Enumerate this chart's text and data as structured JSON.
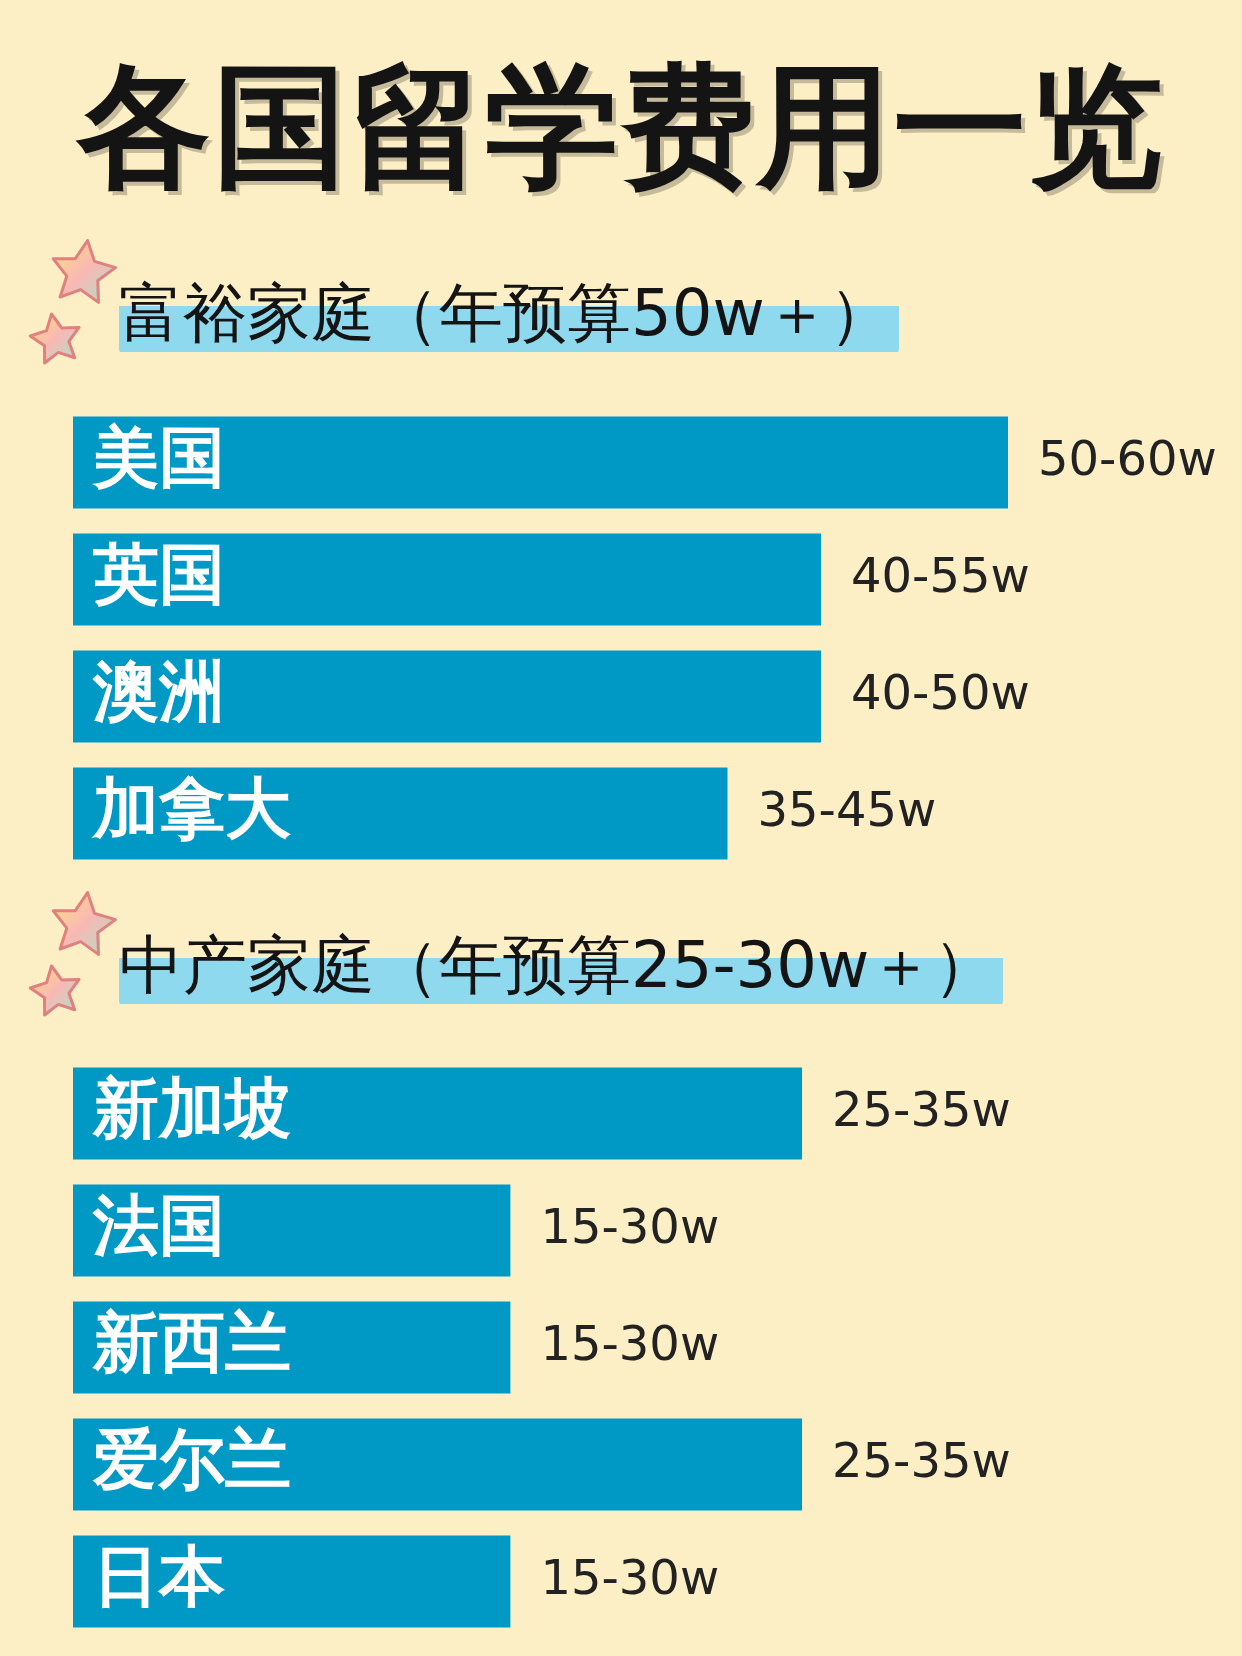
{
  "chart_data": [
    {
      "type": "bar",
      "orientation": "horizontal",
      "title": "各国留学费用一览",
      "subtitle": "富裕家庭（年预算50w＋）",
      "categories": [
        "美国",
        "英国",
        "澳洲",
        "加拿大"
      ],
      "values": [
        50,
        40,
        40,
        35
      ],
      "value_labels": [
        "50-60w",
        "40-55w",
        "40-50w",
        "35-45w"
      ],
      "color": "#0098c5"
    },
    {
      "type": "bar",
      "orientation": "horizontal",
      "subtitle": "中产家庭（年预算25-30w＋）",
      "categories": [
        "新加坡",
        "法国",
        "新西兰",
        "爱尔兰",
        "日本"
      ],
      "values": [
        25,
        15,
        15,
        25,
        15
      ],
      "value_labels": [
        "25-35w",
        "15-30w",
        "15-30w",
        "25-35w",
        "15-30w"
      ],
      "color": "#0098c5"
    }
  ]
}
